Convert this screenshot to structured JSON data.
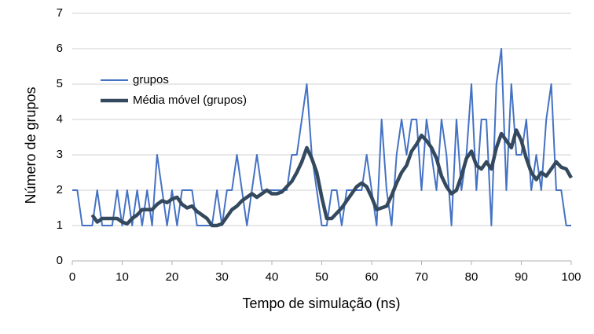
{
  "chart_data": {
    "type": "line",
    "xlabel": "Tempo de simulação (ns)",
    "ylabel": "Número de grupos",
    "x": [
      0,
      1,
      2,
      3,
      4,
      5,
      6,
      7,
      8,
      9,
      10,
      11,
      12,
      13,
      14,
      15,
      16,
      17,
      18,
      19,
      20,
      21,
      22,
      23,
      24,
      25,
      26,
      27,
      28,
      29,
      30,
      31,
      32,
      33,
      34,
      35,
      36,
      37,
      38,
      39,
      40,
      41,
      42,
      43,
      44,
      45,
      46,
      47,
      48,
      49,
      50,
      51,
      52,
      53,
      54,
      55,
      56,
      57,
      58,
      59,
      60,
      61,
      62,
      63,
      64,
      65,
      66,
      67,
      68,
      69,
      70,
      71,
      72,
      73,
      74,
      75,
      76,
      77,
      78,
      79,
      80,
      81,
      82,
      83,
      84,
      85,
      86,
      87,
      88,
      89,
      90,
      91,
      92,
      93,
      94,
      95,
      96,
      97,
      98,
      99,
      100
    ],
    "series": [
      {
        "name": "grupos",
        "color": "#4472c4",
        "width": 2,
        "values": [
          2,
          2,
          1,
          1,
          1,
          2,
          1,
          1,
          1,
          2,
          1,
          2,
          1,
          2,
          1,
          2,
          1,
          3,
          2,
          1,
          2,
          1,
          2,
          2,
          2,
          1,
          1,
          1,
          1,
          2,
          1,
          2,
          2,
          3,
          2,
          1,
          2,
          3,
          2,
          2,
          2,
          2,
          2,
          2,
          3,
          3,
          4,
          5,
          3,
          2,
          1,
          1,
          2,
          2,
          1,
          2,
          2,
          2,
          2,
          3,
          2,
          1,
          4,
          2,
          1,
          3,
          4,
          3,
          4,
          4,
          2,
          4,
          3,
          2,
          4,
          3,
          1,
          4,
          2,
          3,
          5,
          2,
          4,
          4,
          1,
          5,
          6,
          2,
          5,
          3,
          3,
          4,
          2,
          3,
          2,
          4,
          5,
          2,
          2,
          1,
          1
        ]
      },
      {
        "name": "Média móvel (grupos)",
        "color": "#34495e",
        "width": 4.5,
        "values": [
          null,
          null,
          null,
          null,
          1.3,
          1.1,
          1.2,
          1.2,
          1.2,
          1.2,
          1.1,
          1.05,
          1.2,
          1.3,
          1.45,
          1.45,
          1.45,
          1.6,
          1.7,
          1.65,
          1.75,
          1.8,
          1.6,
          1.5,
          1.55,
          1.4,
          1.3,
          1.2,
          1.0,
          1.0,
          1.05,
          1.25,
          1.45,
          1.55,
          1.7,
          1.8,
          1.9,
          1.8,
          1.9,
          2.0,
          1.9,
          1.9,
          1.95,
          2.1,
          2.25,
          2.5,
          2.8,
          3.2,
          2.9,
          2.5,
          1.8,
          1.2,
          1.2,
          1.35,
          1.5,
          1.7,
          1.9,
          2.1,
          2.2,
          2.1,
          1.8,
          1.45,
          1.5,
          1.55,
          1.85,
          2.2,
          2.5,
          2.7,
          3.1,
          3.3,
          3.55,
          3.4,
          3.2,
          2.9,
          2.4,
          2.1,
          1.9,
          2.0,
          2.4,
          2.9,
          3.1,
          2.7,
          2.6,
          2.8,
          2.6,
          3.2,
          3.6,
          3.4,
          3.2,
          3.7,
          3.4,
          2.9,
          2.5,
          2.3,
          2.5,
          2.4,
          2.6,
          2.8,
          2.65,
          2.6,
          2.35
        ]
      }
    ],
    "xlim": [
      0,
      100
    ],
    "xticks": [
      0,
      10,
      20,
      30,
      40,
      50,
      60,
      70,
      80,
      90,
      100
    ],
    "ylim": [
      0,
      7
    ],
    "yticks": [
      0,
      1,
      2,
      3,
      4,
      5,
      6,
      7
    ],
    "grid": true,
    "legend": "upper-left"
  }
}
